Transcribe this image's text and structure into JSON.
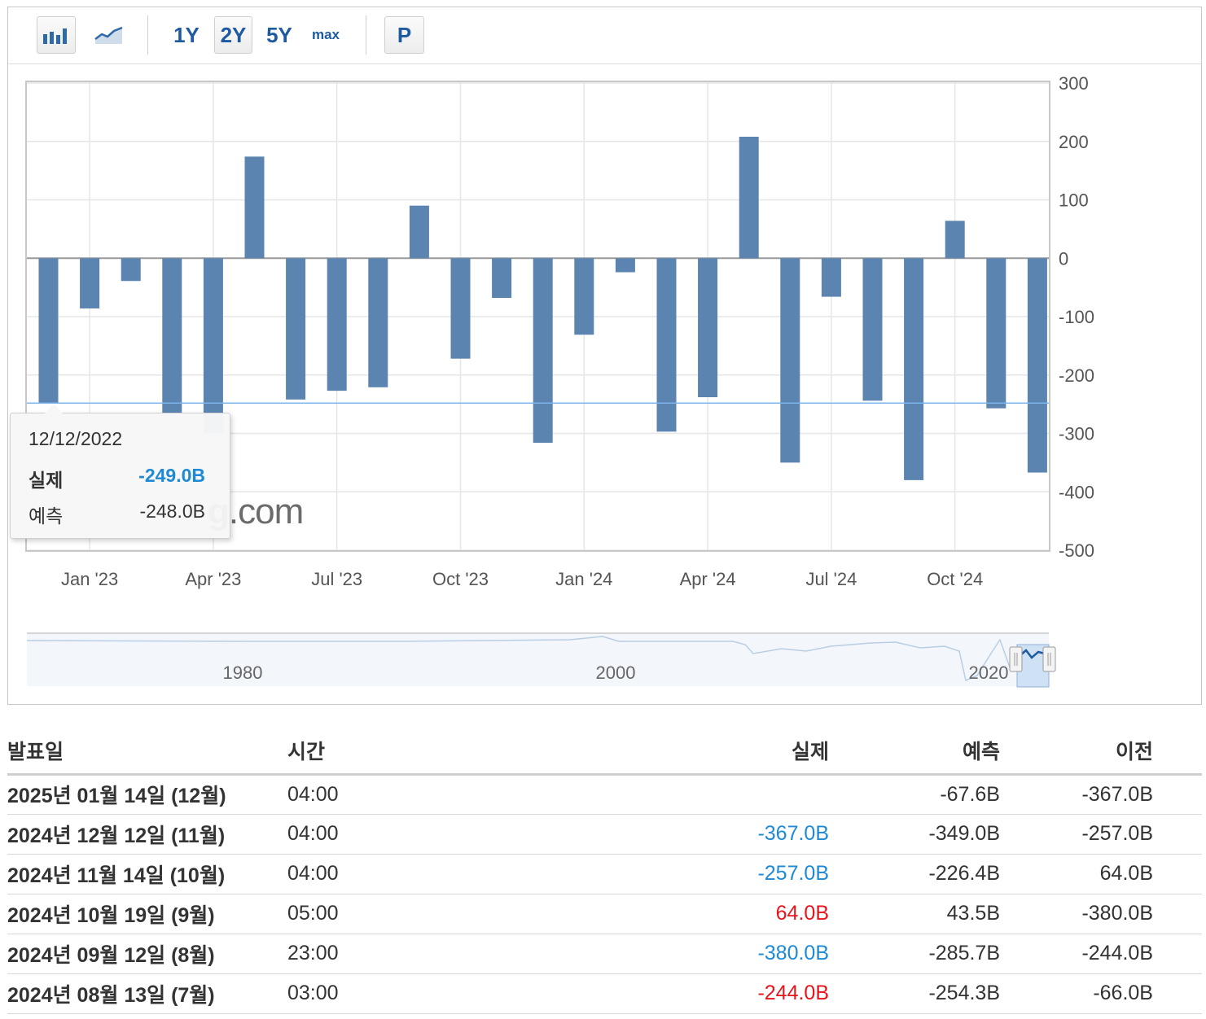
{
  "toolbar": {
    "chart_types": [
      {
        "name": "bar-chart-icon",
        "selected": true
      },
      {
        "name": "line-chart-icon",
        "selected": false
      }
    ],
    "ranges": [
      {
        "label": "1Y",
        "selected": false
      },
      {
        "label": "2Y",
        "selected": true
      },
      {
        "label": "5Y",
        "selected": false
      },
      {
        "label": "max",
        "selected": false
      }
    ],
    "p_label": "P"
  },
  "colors": {
    "bar": "#5b84b1",
    "forecast_line": "#7cb5ec",
    "positive": "#e8141c",
    "negative": "#1e8ad6"
  },
  "watermark": {
    "strong": "g",
    "rest": ".com"
  },
  "tooltip": {
    "date": "12/12/2022",
    "actual_label": "실제",
    "actual_value": "-249.0B",
    "forecast_label": "예측",
    "forecast_value": "-248.0B"
  },
  "chart_data": {
    "type": "bar",
    "title": "",
    "xlabel": "",
    "ylabel": "",
    "unit": "B",
    "ylim": [
      -500,
      300
    ],
    "y_ticks": [
      300,
      200,
      100,
      0,
      -100,
      -200,
      -300,
      -400,
      -500
    ],
    "x_tick_labels": [
      "Jan '23",
      "Apr '23",
      "Jul '23",
      "Oct '23",
      "Jan '24",
      "Apr '24",
      "Jul '24",
      "Oct '24"
    ],
    "x_tick_months": [
      1,
      4,
      7,
      10,
      13,
      16,
      19,
      22
    ],
    "months": [
      0,
      1,
      2,
      3,
      4,
      5,
      6,
      7,
      8,
      9,
      10,
      11,
      12,
      13,
      14,
      15,
      16,
      17,
      18,
      19,
      20,
      21,
      22,
      23,
      24
    ],
    "values": [
      -249,
      -86,
      -39,
      -266,
      -300,
      174,
      -242,
      -227,
      -221,
      90,
      -172,
      -68,
      -316,
      -131,
      -24,
      -297,
      -238,
      208,
      -350,
      -66,
      -244,
      -380,
      64,
      -257,
      -367
    ],
    "forecast_highlight": -248,
    "grid": true,
    "navigator": {
      "labels": [
        "1980",
        "2000",
        "2020"
      ],
      "selected_range": "last 2 years"
    }
  },
  "table": {
    "headers": {
      "date": "발표일",
      "time": "시간",
      "actual": "실제",
      "forecast": "예측",
      "previous": "이전"
    },
    "rows": [
      {
        "date": "2025년 01월 14일 (12월)",
        "time": "04:00",
        "actual": "",
        "actual_color": "",
        "forecast": "-67.6B",
        "previous": "-367.0B"
      },
      {
        "date": "2024년 12월 12일 (11월)",
        "time": "04:00",
        "actual": "-367.0B",
        "actual_color": "blue",
        "forecast": "-349.0B",
        "previous": "-257.0B"
      },
      {
        "date": "2024년 11월 14일 (10월)",
        "time": "04:00",
        "actual": "-257.0B",
        "actual_color": "blue",
        "forecast": "-226.4B",
        "previous": "64.0B"
      },
      {
        "date": "2024년 10월 19일 (9월)",
        "time": "05:00",
        "actual": "64.0B",
        "actual_color": "red",
        "forecast": "43.5B",
        "previous": "-380.0B"
      },
      {
        "date": "2024년 09월 12일 (8월)",
        "time": "23:00",
        "actual": "-380.0B",
        "actual_color": "blue",
        "forecast": "-285.7B",
        "previous": "-244.0B"
      },
      {
        "date": "2024년 08월 13일 (7월)",
        "time": "03:00",
        "actual": "-244.0B",
        "actual_color": "red",
        "forecast": "-254.3B",
        "previous": "-66.0B"
      }
    ]
  }
}
